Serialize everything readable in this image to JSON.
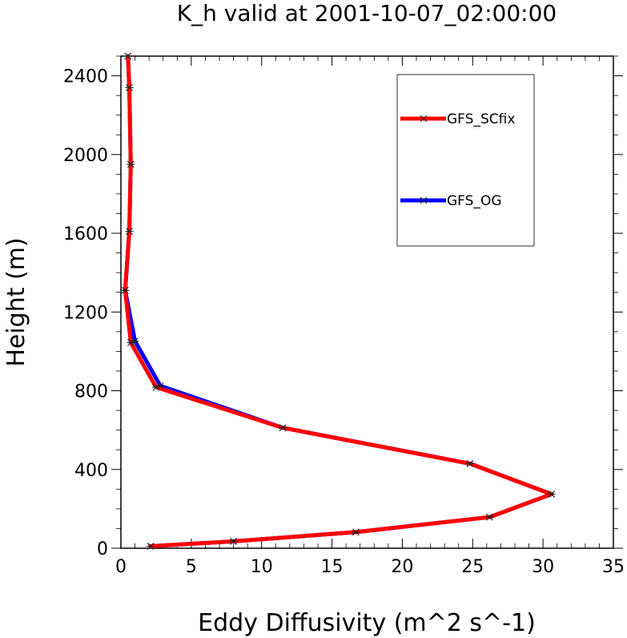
{
  "chart_data": {
    "type": "line",
    "title": "K_h valid at 2001-10-07_02:00:00",
    "xlabel": "Eddy Diffusivity (m^2 s^-1)",
    "ylabel": "Height (m)",
    "xlim": [
      0,
      35
    ],
    "ylim": [
      0,
      2500
    ],
    "xticks": [
      0,
      5,
      10,
      15,
      20,
      25,
      30,
      35
    ],
    "yticks": [
      0,
      400,
      800,
      1200,
      1600,
      2000,
      2400
    ],
    "xtick_labels": [
      "0",
      "5",
      "10",
      "15",
      "20",
      "25",
      "30",
      "35"
    ],
    "ytick_labels": [
      "0",
      "400",
      "800",
      "1200",
      "1600",
      "2000",
      "2400"
    ],
    "legend_position": "top-right",
    "grid": false,
    "series": [
      {
        "name": "GFS_SCfix",
        "color": "#ff0000",
        "points": [
          [
            2.1,
            10
          ],
          [
            8.0,
            35
          ],
          [
            16.7,
            82
          ],
          [
            26.2,
            158
          ],
          [
            30.6,
            275
          ],
          [
            24.8,
            430
          ],
          [
            11.5,
            612
          ],
          [
            2.5,
            818
          ],
          [
            0.7,
            1045
          ],
          [
            0.3,
            1310
          ],
          [
            0.6,
            1610
          ],
          [
            0.7,
            1950
          ],
          [
            0.6,
            2340
          ],
          [
            0.5,
            2500
          ]
        ]
      },
      {
        "name": "GFS_OG",
        "color": "#0000ff",
        "points": [
          [
            2.1,
            10
          ],
          [
            8.0,
            35
          ],
          [
            16.7,
            82
          ],
          [
            26.2,
            158
          ],
          [
            30.6,
            275
          ],
          [
            24.8,
            430
          ],
          [
            11.5,
            612
          ],
          [
            2.8,
            825
          ],
          [
            1.0,
            1052
          ],
          [
            0.3,
            1310
          ],
          [
            0.6,
            1610
          ],
          [
            0.7,
            1950
          ],
          [
            0.6,
            2340
          ],
          [
            0.5,
            2500
          ]
        ]
      }
    ]
  }
}
